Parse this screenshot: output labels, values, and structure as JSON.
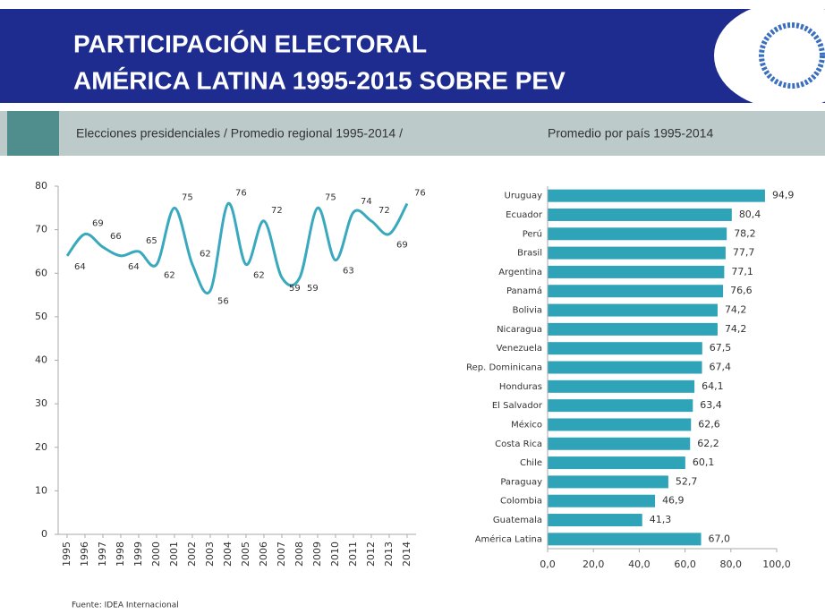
{
  "header": {
    "title": [
      "PARTICIPACIÓN ELECTORAL",
      "AMÉRICA LATINA 1995-2015 SOBRE PEV"
    ]
  },
  "footer": {
    "source": "Fuente: IDEA Internacional"
  },
  "chart_data": [
    {
      "type": "line",
      "title": "Elecciones presidenciales / Promedio regional 1995-2014 /",
      "categories": [
        "1995",
        "1996",
        "1997",
        "1998",
        "1999",
        "2000",
        "2001",
        "2002",
        "2003",
        "2004",
        "2005",
        "2006",
        "2007",
        "2008",
        "2009",
        "2010",
        "2011",
        "2012",
        "2013",
        "2014"
      ],
      "series": [
        {
          "color": "#3aa9be",
          "values": [
            64,
            69,
            66,
            64,
            65,
            62,
            75,
            62,
            56,
            76,
            62,
            72,
            59,
            59,
            75,
            63,
            74,
            72,
            69,
            76
          ]
        }
      ],
      "ylim": [
        0,
        80
      ],
      "yticks": [
        0,
        10,
        20,
        30,
        40,
        50,
        60,
        70,
        80
      ]
    },
    {
      "type": "hbar",
      "title": "Promedio por país 1995-2014",
      "color": "#2fa3b8",
      "categories": [
        "Uruguay",
        "Ecuador",
        "Perú",
        "Brasil",
        "Argentina",
        "Panamá",
        "Bolivia",
        "Nicaragua",
        "Venezuela",
        "Rep. Dominicana",
        "Honduras",
        "El Salvador",
        "México",
        "Costa Rica",
        "Chile",
        "Paraguay",
        "Colombia",
        "Guatemala",
        "América Latina"
      ],
      "values": [
        94.9,
        80.4,
        78.2,
        77.7,
        77.1,
        76.6,
        74.2,
        74.2,
        67.5,
        67.4,
        64.1,
        63.4,
        62.6,
        62.2,
        60.1,
        52.7,
        46.9,
        41.3,
        67.0
      ],
      "value_labels": [
        "94,9",
        "80,4",
        "78,2",
        "77,7",
        "77,1",
        "76,6",
        "74,2",
        "74,2",
        "67,5",
        "67,4",
        "64,1",
        "63,4",
        "62,6",
        "62,2",
        "60,1",
        "52,7",
        "46,9",
        "41,3",
        "67,0"
      ],
      "xlim": [
        0,
        100
      ],
      "xticks": [
        {
          "value": 0,
          "label": "0,0"
        },
        {
          "value": 20,
          "label": "20,0"
        },
        {
          "value": 40,
          "label": "40,0"
        },
        {
          "value": 60,
          "label": "60,0"
        },
        {
          "value": 80,
          "label": "80,0"
        },
        {
          "value": 100,
          "label": "100,0"
        }
      ]
    }
  ]
}
